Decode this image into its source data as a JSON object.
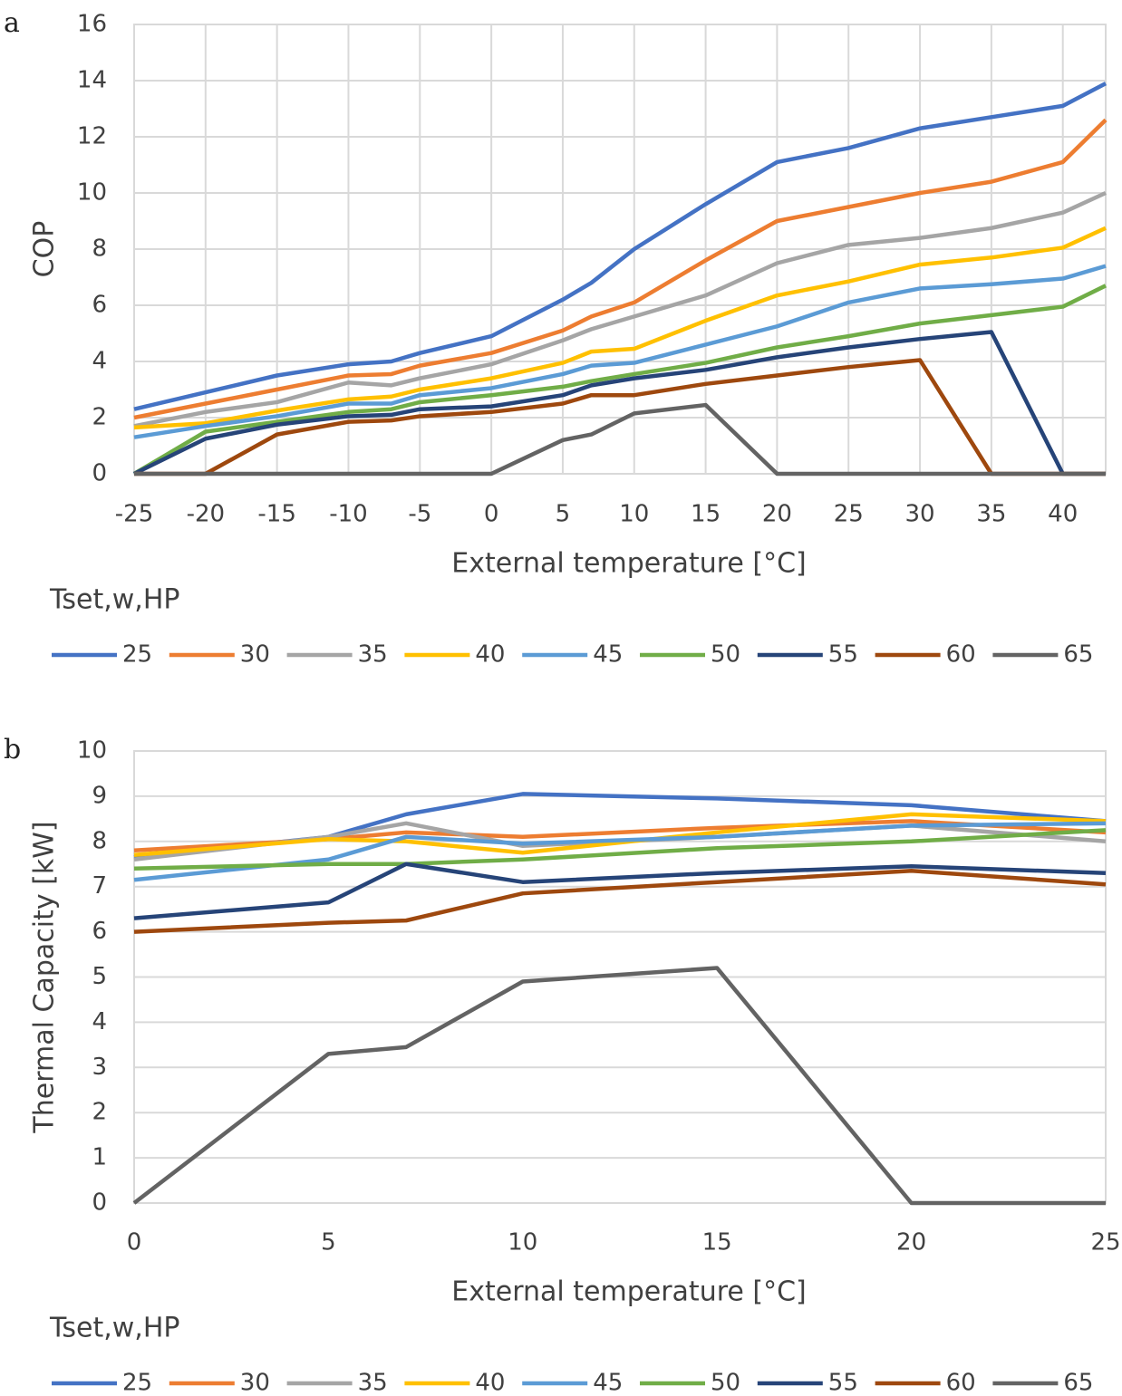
{
  "chart_data": [
    {
      "type": "line",
      "panel_label": "a",
      "x_label": "External temperature [°C]",
      "y_label": "COP",
      "legend_title": "Tset,w,HP",
      "x": [
        -25,
        -20,
        -15,
        -10,
        -7,
        -5,
        0,
        5,
        7,
        10,
        15,
        20,
        25,
        30,
        35,
        40,
        43
      ],
      "xlim": [
        -25,
        43
      ],
      "xticks": [
        -25,
        -20,
        -15,
        -10,
        -5,
        0,
        5,
        10,
        15,
        20,
        25,
        30,
        35,
        40
      ],
      "ylim": [
        0,
        16
      ],
      "yticks": [
        0,
        2,
        4,
        6,
        8,
        10,
        12,
        14,
        16
      ],
      "grid": "both",
      "legend": "bottom",
      "series": [
        {
          "name": "25",
          "color": "#4472c4",
          "values": [
            2.3,
            2.9,
            3.5,
            3.9,
            4.0,
            4.3,
            4.9,
            6.2,
            6.8,
            8.0,
            9.6,
            11.1,
            11.6,
            12.3,
            12.7,
            13.1,
            13.9
          ]
        },
        {
          "name": "30",
          "color": "#ed7d31",
          "values": [
            2.0,
            2.5,
            3.0,
            3.5,
            3.55,
            3.85,
            4.3,
            5.1,
            5.6,
            6.1,
            7.6,
            9.0,
            9.5,
            10.0,
            10.4,
            11.1,
            12.6
          ]
        },
        {
          "name": "35",
          "color": "#a5a5a5",
          "values": [
            1.7,
            2.2,
            2.55,
            3.25,
            3.15,
            3.4,
            3.9,
            4.75,
            5.15,
            5.6,
            6.35,
            7.5,
            8.15,
            8.4,
            8.75,
            9.3,
            10.0
          ]
        },
        {
          "name": "40",
          "color": "#ffc000",
          "values": [
            1.65,
            1.8,
            2.25,
            2.65,
            2.75,
            3.0,
            3.4,
            3.95,
            4.35,
            4.45,
            5.45,
            6.35,
            6.85,
            7.45,
            7.7,
            8.05,
            8.75
          ]
        },
        {
          "name": "45",
          "color": "#5b9bd5",
          "values": [
            1.3,
            1.7,
            2.05,
            2.5,
            2.5,
            2.8,
            3.05,
            3.55,
            3.85,
            3.95,
            4.6,
            5.25,
            6.1,
            6.6,
            6.75,
            6.95,
            7.4
          ]
        },
        {
          "name": "50",
          "color": "#70ad47",
          "values": [
            0,
            1.5,
            1.85,
            2.2,
            2.3,
            2.55,
            2.8,
            3.1,
            3.3,
            3.55,
            3.95,
            4.5,
            4.9,
            5.35,
            5.65,
            5.95,
            6.7
          ]
        },
        {
          "name": "55",
          "color": "#264478",
          "values": [
            0,
            1.25,
            1.75,
            2.05,
            2.1,
            2.3,
            2.4,
            2.8,
            3.15,
            3.4,
            3.7,
            4.15,
            4.5,
            4.8,
            5.05,
            0,
            0
          ]
        },
        {
          "name": "60",
          "color": "#9e480e",
          "values": [
            0,
            0,
            1.4,
            1.85,
            1.9,
            2.05,
            2.2,
            2.5,
            2.8,
            2.8,
            3.2,
            3.5,
            3.8,
            4.05,
            0,
            0,
            0
          ]
        },
        {
          "name": "65",
          "color": "#636363",
          "values": [
            0,
            0,
            0,
            0,
            0,
            0,
            0,
            1.2,
            1.4,
            2.15,
            2.45,
            0,
            0,
            0,
            0,
            0,
            0
          ]
        }
      ]
    },
    {
      "type": "line",
      "panel_label": "b",
      "x_label": "External temperature [°C]",
      "y_label": "Thermal Capacity [kW]",
      "legend_title": "Tset,w,HP",
      "x": [
        0,
        5,
        7,
        10,
        15,
        20,
        25
      ],
      "xlim": [
        0,
        25
      ],
      "xticks": [
        0,
        5,
        10,
        15,
        20,
        25
      ],
      "ylim": [
        0,
        10
      ],
      "yticks": [
        0,
        1,
        2,
        3,
        4,
        5,
        6,
        7,
        8,
        9,
        10
      ],
      "grid": "y",
      "legend": "bottom",
      "series": [
        {
          "name": "25",
          "color": "#4472c4",
          "values": [
            7.65,
            8.1,
            8.6,
            9.05,
            8.95,
            8.8,
            8.45
          ]
        },
        {
          "name": "30",
          "color": "#ed7d31",
          "values": [
            7.8,
            8.05,
            8.2,
            8.1,
            8.3,
            8.45,
            8.2
          ]
        },
        {
          "name": "35",
          "color": "#a5a5a5",
          "values": [
            7.6,
            8.1,
            8.4,
            7.9,
            8.1,
            8.35,
            8.0
          ]
        },
        {
          "name": "40",
          "color": "#ffc000",
          "values": [
            7.7,
            8.05,
            8.0,
            7.75,
            8.2,
            8.6,
            8.45
          ]
        },
        {
          "name": "45",
          "color": "#5b9bd5",
          "values": [
            7.15,
            7.6,
            8.1,
            7.95,
            8.1,
            8.35,
            8.4
          ]
        },
        {
          "name": "50",
          "color": "#70ad47",
          "values": [
            7.4,
            7.5,
            7.5,
            7.6,
            7.85,
            8.0,
            8.25
          ]
        },
        {
          "name": "55",
          "color": "#264478",
          "values": [
            6.3,
            6.65,
            7.5,
            7.1,
            7.3,
            7.45,
            7.3
          ]
        },
        {
          "name": "60",
          "color": "#9e480e",
          "values": [
            6.0,
            6.2,
            6.25,
            6.85,
            7.1,
            7.35,
            7.05
          ]
        },
        {
          "name": "65",
          "color": "#636363",
          "values": [
            0,
            3.3,
            3.45,
            4.9,
            5.2,
            0,
            0
          ]
        }
      ]
    }
  ]
}
